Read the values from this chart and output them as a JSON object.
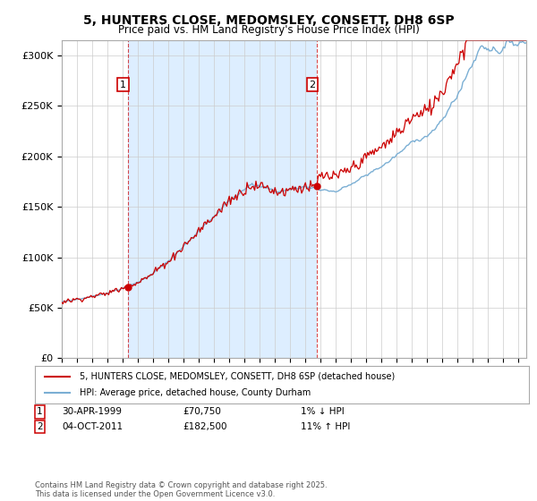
{
  "title_line1": "5, HUNTERS CLOSE, MEDOMSLEY, CONSETT, DH8 6SP",
  "title_line2": "Price paid vs. HM Land Registry's House Price Index (HPI)",
  "yticks": [
    0,
    50000,
    100000,
    150000,
    200000,
    250000,
    300000
  ],
  "ytick_labels": [
    "£0",
    "£50K",
    "£100K",
    "£150K",
    "£200K",
    "£250K",
    "£300K"
  ],
  "xlim_start": 1995.0,
  "xlim_end": 2025.5,
  "ylim": [
    0,
    315000
  ],
  "property_color": "#cc0000",
  "hpi_color": "#7bafd4",
  "fill_color": "#ddeeff",
  "sale1_x": 1999.33,
  "sale1_y": 70750,
  "sale2_x": 2011.75,
  "sale2_y": 182500,
  "sale1_label": "1",
  "sale2_label": "2",
  "legend_property": "5, HUNTERS CLOSE, MEDOMSLEY, CONSETT, DH8 6SP (detached house)",
  "legend_hpi": "HPI: Average price, detached house, County Durham",
  "annotation1_date": "30-APR-1999",
  "annotation1_price": "£70,750",
  "annotation1_hpi": "1% ↓ HPI",
  "annotation2_date": "04-OCT-2011",
  "annotation2_price": "£182,500",
  "annotation2_hpi": "11% ↑ HPI",
  "copyright_text": "Contains HM Land Registry data © Crown copyright and database right 2025.\nThis data is licensed under the Open Government Licence v3.0.",
  "background_color": "#ffffff",
  "grid_color": "#cccccc"
}
